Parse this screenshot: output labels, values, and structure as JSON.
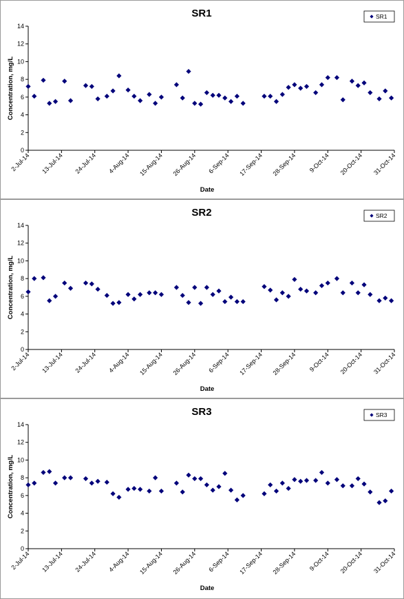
{
  "chart_data": [
    {
      "type": "scatter",
      "title": "SR1",
      "xlabel": "Date",
      "ylabel": "Concentration, mg/L",
      "ylim": [
        0,
        14
      ],
      "yticks": [
        0,
        2,
        4,
        6,
        8,
        10,
        12,
        14
      ],
      "xlim": [
        "2014-07-02",
        "2014-10-31"
      ],
      "xtick_labels": [
        "2-Jul-14",
        "13-Jul-14",
        "24-Jul-14",
        "4-Aug-14",
        "15-Aug-14",
        "26-Aug-14",
        "6-Sep-14",
        "17-Sep-14",
        "28-Sep-14",
        "9-Oct-14",
        "20-Oct-14",
        "31-Oct-14"
      ],
      "grid": false,
      "legend": "top-right",
      "color": "#00007a",
      "series": [
        {
          "name": "SR1",
          "x": [
            "2014-07-02",
            "2014-07-04",
            "2014-07-07",
            "2014-07-09",
            "2014-07-11",
            "2014-07-14",
            "2014-07-16",
            "2014-07-21",
            "2014-07-23",
            "2014-07-25",
            "2014-07-28",
            "2014-07-30",
            "2014-08-01",
            "2014-08-04",
            "2014-08-06",
            "2014-08-08",
            "2014-08-11",
            "2014-08-13",
            "2014-08-15",
            "2014-08-20",
            "2014-08-22",
            "2014-08-24",
            "2014-08-26",
            "2014-08-28",
            "2014-08-30",
            "2014-09-01",
            "2014-09-03",
            "2014-09-05",
            "2014-09-07",
            "2014-09-09",
            "2014-09-11",
            "2014-09-18",
            "2014-09-20",
            "2014-09-22",
            "2014-09-24",
            "2014-09-26",
            "2014-09-28",
            "2014-09-30",
            "2014-10-02",
            "2014-10-05",
            "2014-10-07",
            "2014-10-09",
            "2014-10-12",
            "2014-10-14",
            "2014-10-17",
            "2014-10-19",
            "2014-10-21",
            "2014-10-23",
            "2014-10-26",
            "2014-10-28",
            "2014-10-30"
          ],
          "y": [
            7.2,
            6.1,
            7.9,
            5.3,
            5.5,
            7.8,
            5.6,
            7.3,
            7.2,
            5.8,
            6.1,
            6.7,
            8.4,
            6.8,
            6.1,
            5.6,
            6.3,
            5.3,
            6.0,
            7.4,
            5.9,
            8.9,
            5.3,
            5.2,
            6.5,
            6.2,
            6.2,
            5.9,
            5.5,
            6.1,
            5.3,
            6.1,
            6.1,
            5.5,
            6.3,
            7.1,
            7.4,
            7.0,
            7.2,
            6.5,
            7.4,
            8.2,
            8.2,
            5.7,
            7.8,
            7.3,
            7.6,
            6.5,
            5.8,
            6.7,
            5.9
          ]
        }
      ]
    },
    {
      "type": "scatter",
      "title": "SR2",
      "xlabel": "Date",
      "ylabel": "Concentration, mg/L",
      "ylim": [
        0,
        14
      ],
      "yticks": [
        0,
        2,
        4,
        6,
        8,
        10,
        12,
        14
      ],
      "xlim": [
        "2014-07-02",
        "2014-10-31"
      ],
      "xtick_labels": [
        "2-Jul-14",
        "13-Jul-14",
        "24-Jul-14",
        "4-Aug-14",
        "15-Aug-14",
        "26-Aug-14",
        "6-Sep-14",
        "17-Sep-14",
        "28-Sep-14",
        "9-Oct-14",
        "20-Oct-14",
        "31-Oct-14"
      ],
      "grid": false,
      "legend": "top-right",
      "color": "#00007a",
      "series": [
        {
          "name": "SR2",
          "x": [
            "2014-07-02",
            "2014-07-04",
            "2014-07-07",
            "2014-07-09",
            "2014-07-11",
            "2014-07-14",
            "2014-07-16",
            "2014-07-21",
            "2014-07-23",
            "2014-07-25",
            "2014-07-28",
            "2014-07-30",
            "2014-08-01",
            "2014-08-04",
            "2014-08-06",
            "2014-08-08",
            "2014-08-11",
            "2014-08-13",
            "2014-08-15",
            "2014-08-20",
            "2014-08-22",
            "2014-08-24",
            "2014-08-26",
            "2014-08-28",
            "2014-08-30",
            "2014-09-01",
            "2014-09-03",
            "2014-09-05",
            "2014-09-07",
            "2014-09-09",
            "2014-09-11",
            "2014-09-18",
            "2014-09-20",
            "2014-09-22",
            "2014-09-24",
            "2014-09-26",
            "2014-09-28",
            "2014-09-30",
            "2014-10-02",
            "2014-10-05",
            "2014-10-07",
            "2014-10-09",
            "2014-10-12",
            "2014-10-14",
            "2014-10-17",
            "2014-10-19",
            "2014-10-21",
            "2014-10-23",
            "2014-10-26",
            "2014-10-28",
            "2014-10-30"
          ],
          "y": [
            6.5,
            8.0,
            8.1,
            5.5,
            6.0,
            7.5,
            6.9,
            7.5,
            7.4,
            6.8,
            6.1,
            5.2,
            5.3,
            6.2,
            5.7,
            6.2,
            6.4,
            6.4,
            6.2,
            7.0,
            6.1,
            5.3,
            7.0,
            5.2,
            7.0,
            6.2,
            6.6,
            5.4,
            5.9,
            5.4,
            5.4,
            7.1,
            6.7,
            5.6,
            6.4,
            6.0,
            7.9,
            6.8,
            6.6,
            6.4,
            7.2,
            7.5,
            8.0,
            6.4,
            7.5,
            6.4,
            7.3,
            6.2,
            5.5,
            5.8,
            5.5
          ]
        }
      ]
    },
    {
      "type": "scatter",
      "title": "SR3",
      "xlabel": "Date",
      "ylabel": "Concentration, mg/L",
      "ylim": [
        0,
        14
      ],
      "yticks": [
        0,
        2,
        4,
        6,
        8,
        10,
        12,
        14
      ],
      "xlim": [
        "2014-07-02",
        "2014-10-31"
      ],
      "xtick_labels": [
        "2-Jul-14",
        "13-Jul-14",
        "24-Jul-14",
        "4-Aug-14",
        "15-Aug-14",
        "26-Aug-14",
        "6-Sep-14",
        "17-Sep-14",
        "28-Sep-14",
        "9-Oct-14",
        "20-Oct-14",
        "31-Oct-14"
      ],
      "grid": false,
      "legend": "top-right",
      "color": "#00007a",
      "series": [
        {
          "name": "SR3",
          "x": [
            "2014-07-02",
            "2014-07-04",
            "2014-07-07",
            "2014-07-09",
            "2014-07-11",
            "2014-07-14",
            "2014-07-16",
            "2014-07-21",
            "2014-07-23",
            "2014-07-25",
            "2014-07-28",
            "2014-07-30",
            "2014-08-01",
            "2014-08-04",
            "2014-08-06",
            "2014-08-08",
            "2014-08-11",
            "2014-08-13",
            "2014-08-15",
            "2014-08-20",
            "2014-08-22",
            "2014-08-24",
            "2014-08-26",
            "2014-08-28",
            "2014-08-30",
            "2014-09-01",
            "2014-09-03",
            "2014-09-05",
            "2014-09-07",
            "2014-09-09",
            "2014-09-11",
            "2014-09-18",
            "2014-09-20",
            "2014-09-22",
            "2014-09-24",
            "2014-09-26",
            "2014-09-28",
            "2014-09-30",
            "2014-10-02",
            "2014-10-05",
            "2014-10-07",
            "2014-10-09",
            "2014-10-12",
            "2014-10-14",
            "2014-10-17",
            "2014-10-19",
            "2014-10-21",
            "2014-10-23",
            "2014-10-26",
            "2014-10-28",
            "2014-10-30"
          ],
          "y": [
            7.2,
            7.4,
            8.6,
            8.7,
            7.4,
            8.0,
            8.0,
            7.9,
            7.4,
            7.6,
            7.5,
            6.2,
            5.8,
            6.7,
            6.8,
            6.7,
            6.5,
            8.0,
            6.5,
            7.4,
            6.4,
            8.3,
            7.9,
            7.9,
            7.2,
            6.6,
            7.0,
            8.5,
            6.6,
            5.5,
            6.0,
            6.2,
            7.2,
            6.5,
            7.4,
            6.8,
            7.8,
            7.6,
            7.7,
            7.7,
            8.6,
            7.4,
            7.8,
            7.1,
            7.1,
            7.9,
            7.3,
            6.4,
            5.2,
            5.4,
            6.5
          ]
        }
      ]
    }
  ]
}
